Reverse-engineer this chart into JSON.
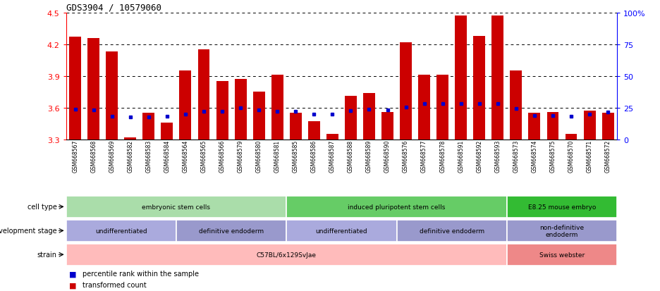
{
  "title": "GDS3904 / 10579060",
  "samples": [
    "GSM668567",
    "GSM668568",
    "GSM668569",
    "GSM668582",
    "GSM668583",
    "GSM668584",
    "GSM668564",
    "GSM668565",
    "GSM668566",
    "GSM668579",
    "GSM668580",
    "GSM668581",
    "GSM668585",
    "GSM668586",
    "GSM668587",
    "GSM668588",
    "GSM668589",
    "GSM668590",
    "GSM668576",
    "GSM668577",
    "GSM668578",
    "GSM668591",
    "GSM668592",
    "GSM668593",
    "GSM668573",
    "GSM668574",
    "GSM668575",
    "GSM668570",
    "GSM668571",
    "GSM668572"
  ],
  "bar_values": [
    4.27,
    4.26,
    4.13,
    3.32,
    3.55,
    3.46,
    3.95,
    4.15,
    3.85,
    3.87,
    3.75,
    3.91,
    3.55,
    3.47,
    3.35,
    3.71,
    3.74,
    3.56,
    4.22,
    3.91,
    3.91,
    4.47,
    4.28,
    4.47,
    3.95,
    3.55,
    3.56,
    3.35,
    3.57,
    3.55
  ],
  "percentile_values": [
    3.585,
    3.575,
    3.52,
    3.51,
    3.51,
    3.52,
    3.54,
    3.565,
    3.565,
    3.595,
    3.58,
    3.565,
    3.565,
    3.535,
    3.535,
    3.57,
    3.585,
    3.575,
    3.605,
    3.635,
    3.635,
    3.635,
    3.635,
    3.635,
    3.59,
    3.525,
    3.525,
    3.515,
    3.535,
    3.555
  ],
  "ylim": [
    3.3,
    4.5
  ],
  "yticks_left": [
    3.3,
    3.6,
    3.9,
    4.2,
    4.5
  ],
  "yticks_right": [
    0,
    25,
    50,
    75,
    100
  ],
  "bar_color": "#cc0000",
  "blue_color": "#0000cc",
  "cell_type_groups": [
    {
      "label": "embryonic stem cells",
      "start": 0,
      "end": 11,
      "color": "#aaddaa"
    },
    {
      "label": "induced pluripotent stem cells",
      "start": 12,
      "end": 23,
      "color": "#66cc66"
    },
    {
      "label": "E8.25 mouse embryo",
      "start": 24,
      "end": 29,
      "color": "#33bb33"
    }
  ],
  "dev_stage_groups": [
    {
      "label": "undifferentiated",
      "start": 0,
      "end": 5,
      "color": "#aaaadd"
    },
    {
      "label": "definitive endoderm",
      "start": 6,
      "end": 11,
      "color": "#9999cc"
    },
    {
      "label": "undifferentiated",
      "start": 12,
      "end": 17,
      "color": "#aaaadd"
    },
    {
      "label": "definitive endoderm",
      "start": 18,
      "end": 23,
      "color": "#9999cc"
    },
    {
      "label": "non-definitive\nendoderm",
      "start": 24,
      "end": 29,
      "color": "#9999cc"
    }
  ],
  "strain_groups": [
    {
      "label": "C57BL/6x129SvJae",
      "start": 0,
      "end": 23,
      "color": "#ffbbbb"
    },
    {
      "label": "Swiss webster",
      "start": 24,
      "end": 29,
      "color": "#ee8888"
    }
  ],
  "row_labels": [
    "cell type",
    "development stage",
    "strain"
  ],
  "legend_items": [
    {
      "label": "transformed count",
      "color": "#cc0000"
    },
    {
      "label": "percentile rank within the sample",
      "color": "#0000cc"
    }
  ]
}
